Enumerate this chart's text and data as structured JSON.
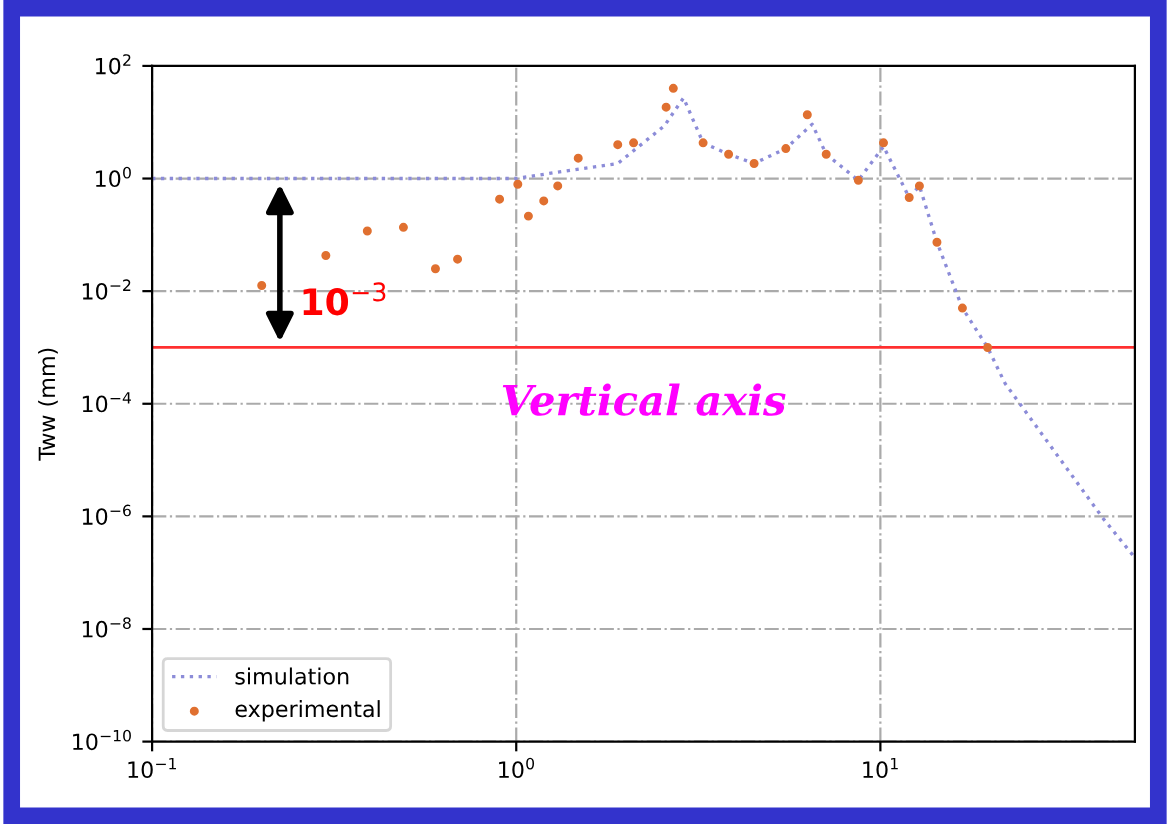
{
  "chart_data": {
    "type": "scatter",
    "ylabel": "Tww (mm)",
    "log": "xy",
    "xlim": [
      0.1,
      50
    ],
    "xticks": [
      {
        "value": 0.1,
        "label": "10$^{−1}$"
      },
      {
        "value": 1,
        "label": "10$^{0}$"
      },
      {
        "value": 10,
        "label": "10$^{1}$"
      }
    ],
    "ylim": [
      1e-10,
      100
    ],
    "yticks": [
      {
        "value": 100,
        "label": "10$^{2}$"
      },
      {
        "value": 1,
        "label": "10$^{0}$"
      },
      {
        "value": 0.01,
        "label": "10$^{−2}$"
      },
      {
        "value": 0.0001,
        "label": "10$^{−4}$"
      },
      {
        "value": 1e-06,
        "label": "10$^{−6}$"
      },
      {
        "value": 1e-08,
        "label": "10$^{−8}$"
      },
      {
        "value": 1e-10,
        "label": "10$^{−10}$"
      }
    ],
    "grid": true,
    "legend": "bottom left",
    "series": [
      {
        "name": "simulation",
        "type": "line",
        "line_style": "dotted",
        "color": "#8c8cd8",
        "x": [
          0.1,
          0.5,
          1.0,
          1.26,
          1.9,
          2.55,
          2.88,
          3.26,
          3.83,
          4.5,
          5.5,
          6.5,
          7.1,
          8.7,
          10.2,
          12,
          12.8,
          14.3,
          16.8,
          19.7,
          22,
          41,
          49.5
        ],
        "values": [
          1,
          1,
          1,
          1.26,
          1.85,
          8.6,
          27,
          4.3,
          2.7,
          1.85,
          3.4,
          9.2,
          2.7,
          0.93,
          3.7,
          0.46,
          0.74,
          0.074,
          0.005,
          0.001,
          0.00023,
          9e-07,
          2e-07
        ]
      },
      {
        "name": "experimental",
        "marker": "circle",
        "color": "#e07030",
        "x": [
          0.2,
          0.3,
          0.39,
          0.49,
          0.6,
          0.69,
          0.9,
          1.01,
          1.08,
          1.19,
          1.3,
          1.48,
          1.9,
          2.1,
          2.58,
          2.7,
          3.26,
          3.83,
          4.5,
          5.5,
          6.3,
          7.1,
          8.7,
          10.2,
          12,
          12.8,
          14.3,
          16.8,
          19.7
        ],
        "values": [
          0.0126,
          0.043,
          0.117,
          0.136,
          0.025,
          0.037,
          0.43,
          0.79,
          0.215,
          0.4,
          0.74,
          2.3,
          4,
          4.3,
          18.5,
          40,
          4.3,
          2.7,
          1.85,
          3.4,
          13.6,
          2.7,
          0.93,
          4.3,
          0.46,
          0.74,
          0.074,
          0.005,
          0.001
        ]
      }
    ],
    "ref_lines": [
      {
        "axis": "y",
        "value": 0.001,
        "color": "#ff3030"
      }
    ],
    "annotations": [
      "10$^{−3}$",
      "Vertical axis"
    ]
  }
}
